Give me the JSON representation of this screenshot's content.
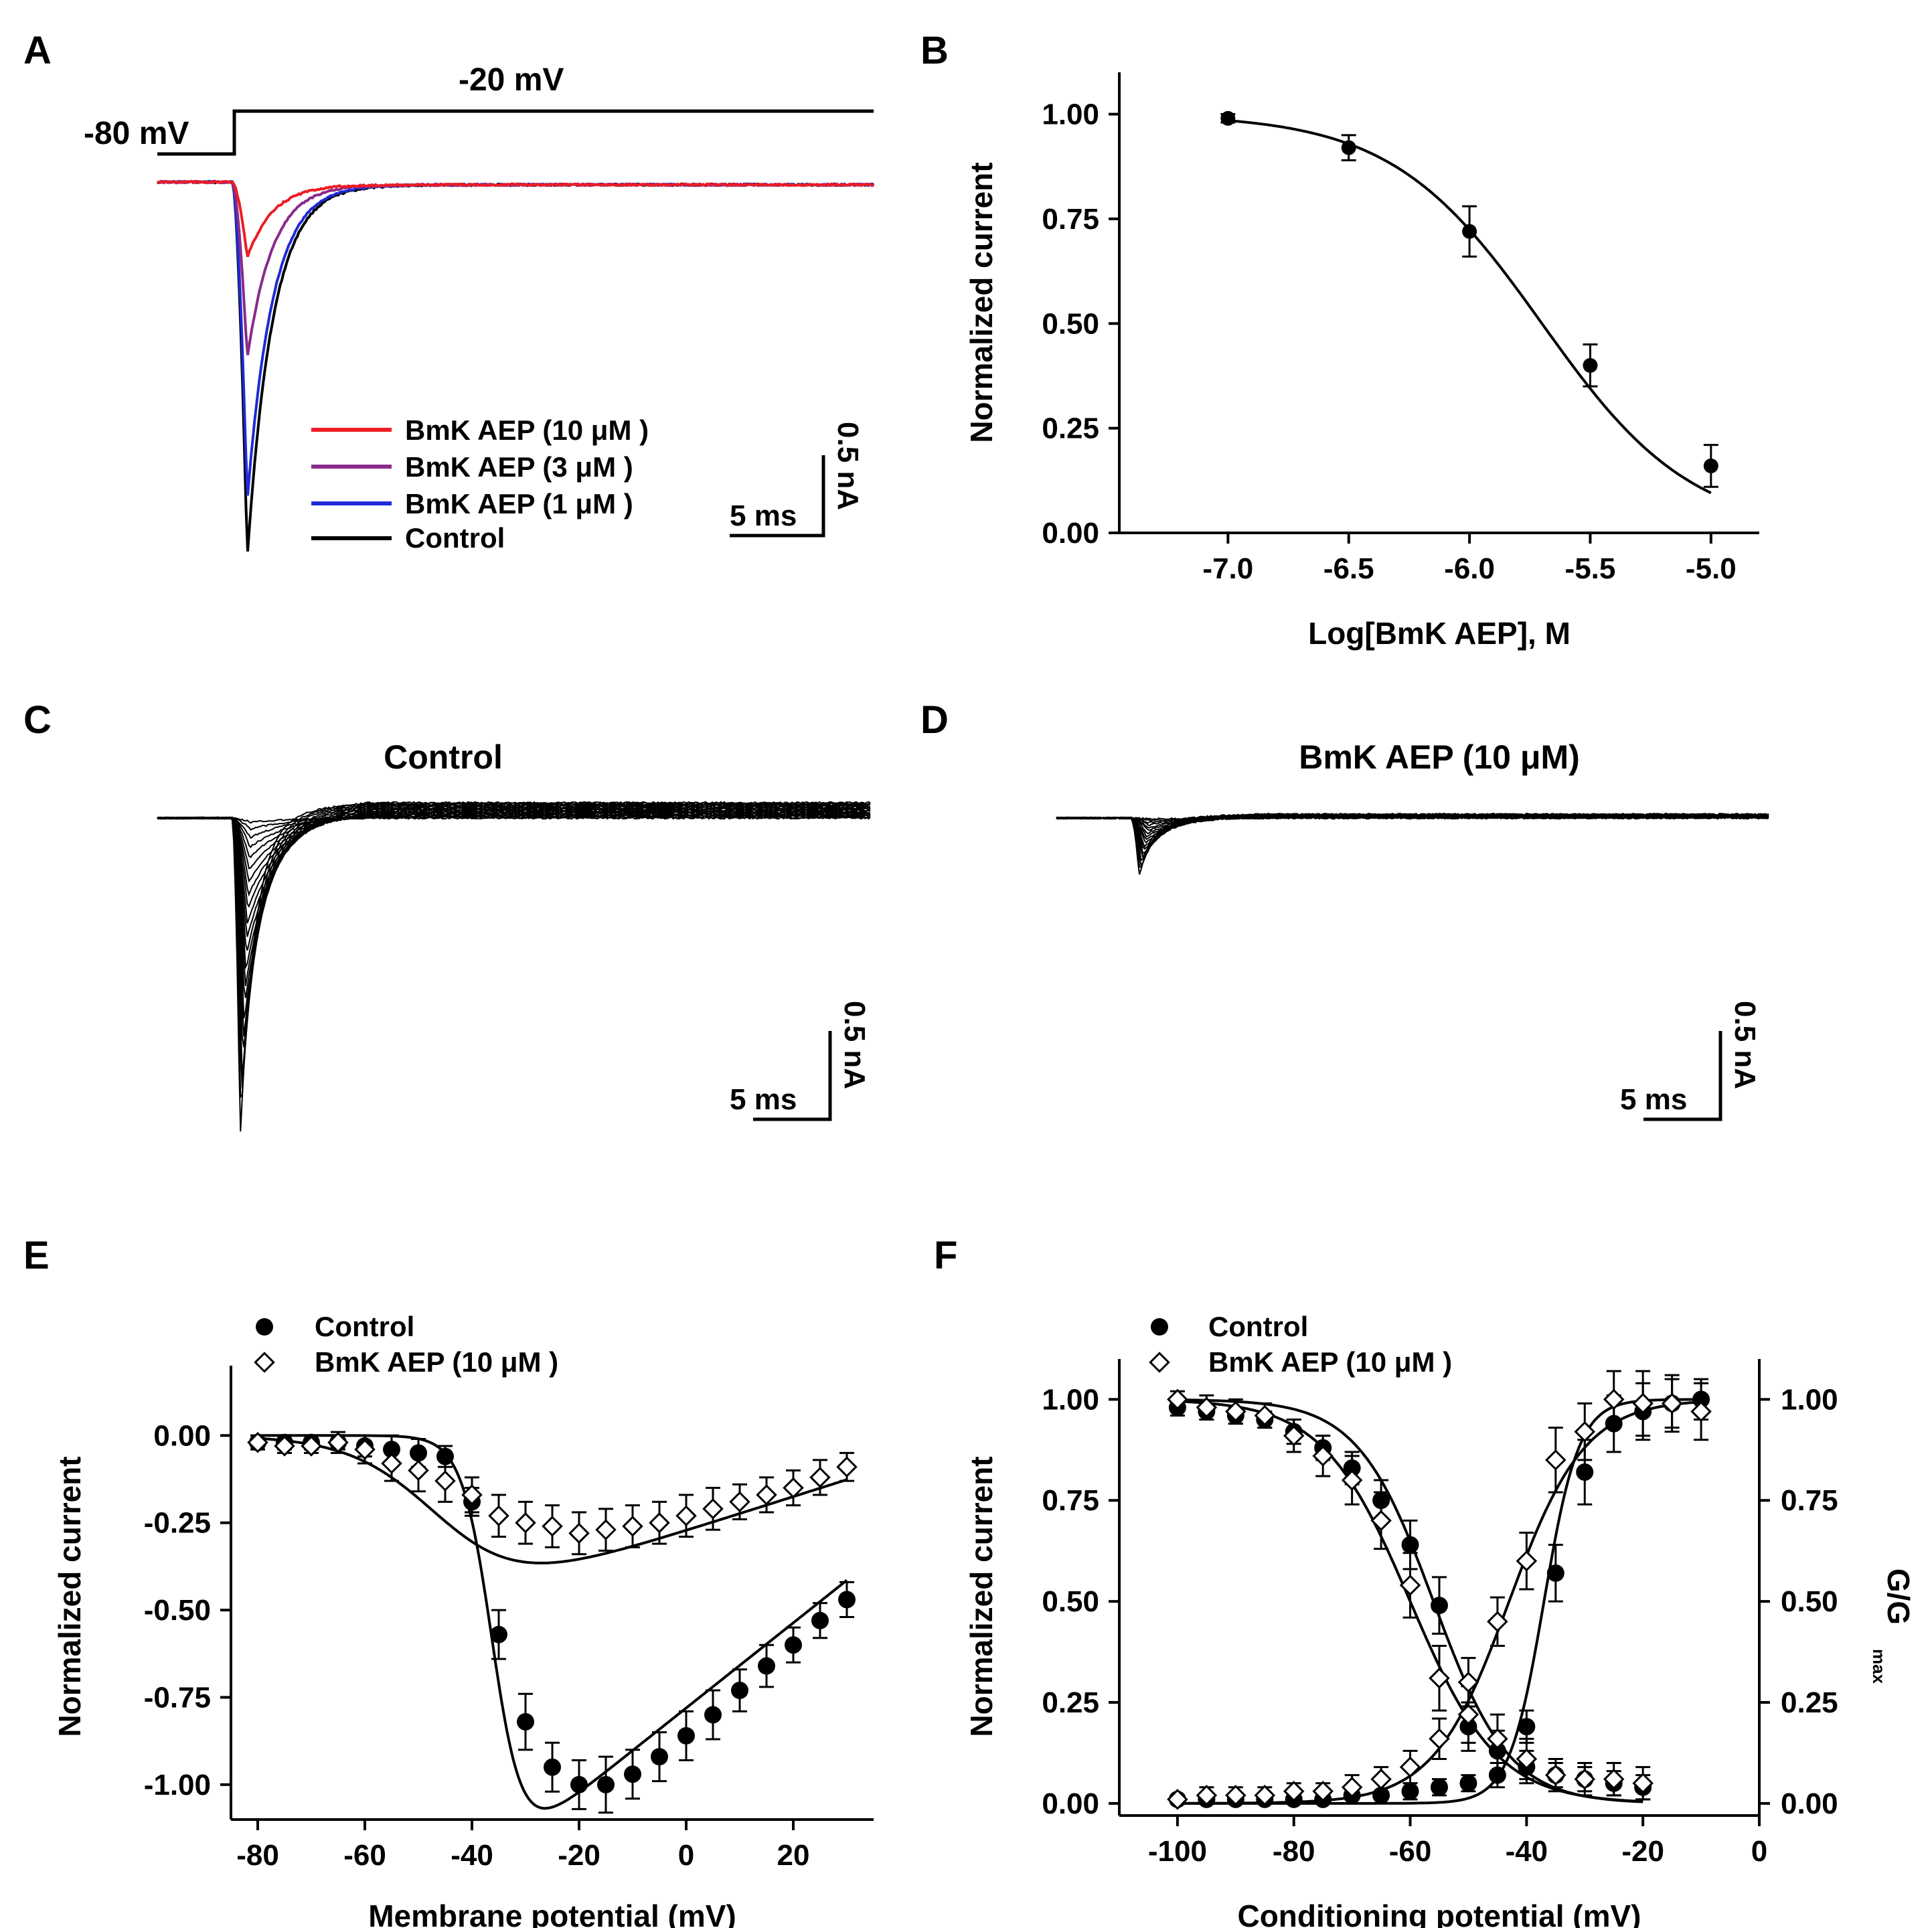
{
  "panels": {
    "A": {
      "label": "A",
      "protocol": {
        "hold": "-80 mV",
        "step": "-20 mV"
      },
      "legend": [
        "BmK AEP (10 μM )",
        "BmK AEP (3 μM )",
        "BmK AEP (1 μM )",
        "Control"
      ],
      "scale": {
        "time": "5 ms",
        "current": "0.5 nA"
      }
    },
    "B": {
      "label": "B"
    },
    "C": {
      "label": "C",
      "title": "Control",
      "scale": {
        "time": "5 ms",
        "current": "0.5 nA"
      }
    },
    "D": {
      "label": "D",
      "title": "BmK AEP (10 μM)",
      "scale": {
        "time": "5 ms",
        "current": "0.5 nA"
      }
    },
    "E": {
      "label": "E"
    },
    "F": {
      "label": "F"
    }
  },
  "colors": {
    "red": "#ee1c24",
    "purple": "#8a2a8a",
    "blue": "#1f2bd6",
    "black": "#000000"
  },
  "chart_data": [
    {
      "id": "A",
      "type": "line",
      "title": "",
      "xlabel": "",
      "ylabel": "",
      "series": [
        {
          "name": "BmK AEP (10 μM )",
          "color": "red",
          "peak": 0.2
        },
        {
          "name": "BmK AEP (3 μM )",
          "color": "purple",
          "peak": 0.47
        },
        {
          "name": "BmK AEP (1 μM )",
          "color": "blue",
          "peak": 0.85
        },
        {
          "name": "Control",
          "color": "black",
          "peak": 1.0
        }
      ]
    },
    {
      "id": "B",
      "type": "scatter",
      "xlabel": "Log[BmK AEP], M",
      "ylabel": "Normalized current",
      "xlim": [
        -7.45,
        -4.8
      ],
      "ylim": [
        0,
        1.1
      ],
      "xticks": [
        -7.0,
        -6.5,
        -6.0,
        -5.5,
        -5.0
      ],
      "xtick_labels": [
        "-7.0",
        "-6.5",
        "-6.0",
        "-5.5",
        "-5.0"
      ],
      "yticks": [
        0,
        0.25,
        0.5,
        0.75,
        1.0
      ],
      "ytick_labels": [
        "0.00",
        "0.25",
        "0.50",
        "0.75",
        "1.00"
      ],
      "x": [
        -7.0,
        -6.5,
        -6.0,
        -5.5,
        -5.0
      ],
      "y": [
        0.99,
        0.92,
        0.72,
        0.4,
        0.16
      ],
      "err": [
        0.01,
        0.03,
        0.06,
        0.05,
        0.05
      ],
      "fit": {
        "type": "hill",
        "top": 1.0,
        "bottom": 0.0,
        "logIC50": -5.7,
        "slope": 0.9
      }
    },
    {
      "id": "C",
      "type": "line",
      "title": "Control",
      "families": {
        "count": 22,
        "max_peak": 1.0
      }
    },
    {
      "id": "D",
      "type": "line",
      "title": "BmK AEP (10 μM)",
      "families": {
        "count": 18,
        "max_peak": 0.18
      }
    },
    {
      "id": "E",
      "type": "scatter",
      "xlabel": "Membrane potential (mV)",
      "ylabel": "Normalized current",
      "xlim": [
        -85,
        35
      ],
      "ylim": [
        -1.1,
        0.2
      ],
      "xticks": [
        -80,
        -60,
        -40,
        -20,
        0,
        20
      ],
      "xtick_labels": [
        "-80",
        "-60",
        "-40",
        "-20",
        "0",
        "20"
      ],
      "yticks": [
        0.0,
        -0.25,
        -0.5,
        -0.75,
        -1.0
      ],
      "ytick_labels": [
        "0.00",
        "-0.25",
        "-0.50",
        "-0.75",
        "-1.00"
      ],
      "legend": [
        "Control",
        "BmK AEP (10 μM )"
      ],
      "series": [
        {
          "name": "Control",
          "marker": "filled-circle",
          "x": [
            -80,
            -75,
            -70,
            -65,
            -60,
            -55,
            -50,
            -45,
            -40,
            -35,
            -30,
            -25,
            -20,
            -15,
            -10,
            -5,
            0,
            5,
            10,
            15,
            20,
            25,
            30
          ],
          "y": [
            -0.02,
            -0.02,
            -0.02,
            -0.02,
            -0.03,
            -0.04,
            -0.05,
            -0.06,
            -0.19,
            -0.57,
            -0.82,
            -0.95,
            -1.0,
            -1.0,
            -0.97,
            -0.92,
            -0.86,
            -0.8,
            -0.73,
            -0.66,
            -0.6,
            -0.53,
            -0.47
          ],
          "err": [
            0.02,
            0.02,
            0.02,
            0.02,
            0.03,
            0.04,
            0.04,
            0.03,
            0.04,
            0.07,
            0.08,
            0.07,
            0.07,
            0.08,
            0.07,
            0.07,
            0.07,
            0.07,
            0.06,
            0.06,
            0.05,
            0.05,
            0.05
          ]
        },
        {
          "name": "BmK AEP (10 μM )",
          "marker": "open-diamond",
          "x": [
            -80,
            -75,
            -70,
            -65,
            -60,
            -55,
            -50,
            -45,
            -40,
            -35,
            -30,
            -25,
            -20,
            -15,
            -10,
            -5,
            0,
            5,
            10,
            15,
            20,
            25,
            30
          ],
          "y": [
            -0.02,
            -0.03,
            -0.03,
            -0.02,
            -0.04,
            -0.08,
            -0.1,
            -0.13,
            -0.17,
            -0.23,
            -0.25,
            -0.26,
            -0.28,
            -0.27,
            -0.26,
            -0.25,
            -0.23,
            -0.21,
            -0.19,
            -0.17,
            -0.15,
            -0.12,
            -0.09
          ],
          "err": [
            0.02,
            0.02,
            0.02,
            0.03,
            0.04,
            0.05,
            0.06,
            0.06,
            0.05,
            0.06,
            0.06,
            0.06,
            0.06,
            0.06,
            0.06,
            0.06,
            0.06,
            0.06,
            0.05,
            0.05,
            0.05,
            0.05,
            0.04
          ]
        }
      ],
      "fit": [
        {
          "series": "Control",
          "type": "iv-boltzmann",
          "Erev": 64,
          "V50": -36,
          "k": 2.8,
          "scale": 1.0
        },
        {
          "series": "BmK AEP (10 μM )",
          "type": "iv-boltzmann",
          "Erev": 56,
          "V50": -45,
          "k": 8,
          "scale": 0.36
        }
      ]
    },
    {
      "id": "F",
      "type": "scatter",
      "xlabel": "Conditioning potential (mV)",
      "ylabel": "Normalized current",
      "y2label": "G/G",
      "y2label_sub": "max",
      "xlim": [
        -110,
        0
      ],
      "ylim": [
        -0.03,
        1.1
      ],
      "xticks": [
        -100,
        -80,
        -60,
        -40,
        -20,
        0
      ],
      "xtick_labels": [
        "-100",
        "-80",
        "-60",
        "-40",
        "-20",
        "0"
      ],
      "yticks": [
        0,
        0.25,
        0.5,
        0.75,
        1.0
      ],
      "ytick_labels": [
        "0.00",
        "0.25",
        "0.50",
        "0.75",
        "1.00"
      ],
      "legend": [
        "Control",
        "BmK AEP (10 μM )"
      ],
      "series": [
        {
          "name": "Control",
          "curve": "inactivation",
          "marker": "filled-circle",
          "x": [
            -100,
            -95,
            -90,
            -85,
            -80,
            -75,
            -70,
            -65,
            -60,
            -55,
            -50,
            -45,
            -40,
            -35,
            -30,
            -25,
            -20
          ],
          "y": [
            0.98,
            0.97,
            0.96,
            0.95,
            0.92,
            0.88,
            0.83,
            0.75,
            0.64,
            0.49,
            0.19,
            0.13,
            0.09,
            0.07,
            0.06,
            0.05,
            0.04
          ],
          "err": [
            0.02,
            0.02,
            0.02,
            0.02,
            0.03,
            0.03,
            0.04,
            0.05,
            0.06,
            0.07,
            0.06,
            0.05,
            0.04,
            0.03,
            0.03,
            0.03,
            0.03
          ]
        },
        {
          "name": "BmK AEP (10 μM )",
          "curve": "inactivation",
          "marker": "open-diamond",
          "x": [
            -100,
            -95,
            -90,
            -85,
            -80,
            -75,
            -70,
            -65,
            -60,
            -55,
            -50,
            -45,
            -40,
            -35,
            -30,
            -25,
            -20
          ],
          "y": [
            1.0,
            0.98,
            0.97,
            0.96,
            0.91,
            0.86,
            0.8,
            0.7,
            0.54,
            0.31,
            0.22,
            0.16,
            0.11,
            0.07,
            0.06,
            0.06,
            0.05
          ],
          "err": [
            0.02,
            0.03,
            0.03,
            0.03,
            0.04,
            0.05,
            0.06,
            0.07,
            0.08,
            0.08,
            0.07,
            0.06,
            0.05,
            0.04,
            0.04,
            0.04,
            0.04
          ]
        },
        {
          "name": "Control",
          "curve": "activation",
          "marker": "filled-circle",
          "x": [
            -100,
            -95,
            -90,
            -85,
            -80,
            -75,
            -70,
            -65,
            -60,
            -55,
            -50,
            -45,
            -40,
            -35,
            -30,
            -25,
            -20,
            -15,
            -10
          ],
          "y": [
            0.01,
            0.01,
            0.01,
            0.01,
            0.01,
            0.01,
            0.02,
            0.02,
            0.03,
            0.04,
            0.05,
            0.07,
            0.19,
            0.57,
            0.82,
            0.94,
            0.97,
            0.99,
            1.0
          ],
          "err": [
            0.01,
            0.01,
            0.01,
            0.01,
            0.01,
            0.01,
            0.01,
            0.01,
            0.02,
            0.02,
            0.02,
            0.03,
            0.04,
            0.07,
            0.08,
            0.07,
            0.07,
            0.06,
            0.05
          ]
        },
        {
          "name": "BmK AEP (10 μM )",
          "curve": "activation",
          "marker": "open-diamond",
          "x": [
            -100,
            -95,
            -90,
            -85,
            -80,
            -75,
            -70,
            -65,
            -60,
            -55,
            -50,
            -45,
            -40,
            -35,
            -30,
            -25,
            -20,
            -15,
            -10
          ],
          "y": [
            0.01,
            0.02,
            0.02,
            0.02,
            0.03,
            0.03,
            0.04,
            0.06,
            0.09,
            0.16,
            0.3,
            0.45,
            0.6,
            0.85,
            0.92,
            1.0,
            0.99,
            0.99,
            0.97
          ],
          "err": [
            0.01,
            0.02,
            0.02,
            0.02,
            0.02,
            0.02,
            0.03,
            0.03,
            0.04,
            0.05,
            0.06,
            0.06,
            0.07,
            0.08,
            0.07,
            0.07,
            0.08,
            0.07,
            0.07
          ]
        }
      ],
      "fit": [
        {
          "series": "Control",
          "type": "inactivation",
          "V50": -56,
          "k": 6.5
        },
        {
          "series": "BmK AEP (10 μM )",
          "type": "inactivation",
          "V50": -60,
          "k": 7.5
        },
        {
          "series": "Control",
          "type": "activation",
          "V50": -37,
          "k": 3.0
        },
        {
          "series": "BmK AEP (10 μM )",
          "type": "activation",
          "V50": -43,
          "k": 6.5
        }
      ]
    }
  ]
}
